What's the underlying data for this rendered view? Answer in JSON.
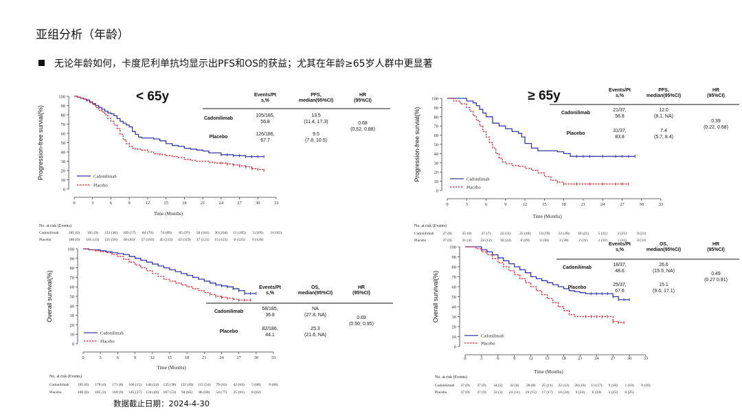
{
  "title": "亚组分析（年龄）",
  "bullet": "无论年龄如何，卡度尼利单抗均显示出PFS和OS的获益；尤其在年龄≥65岁人群中更显著",
  "footer": "数据截止日期：2024-4-30",
  "colors": {
    "cadonilimab": "#3436a8",
    "placebo": "#d8283a",
    "text": "#111111"
  },
  "chart_data": [
    {
      "id": "pfs_lt65",
      "type": "line",
      "subgroup": "< 65y",
      "ylabel": "Progression-free survial(%)",
      "xlabel": "Time (Months)",
      "xlim": [
        0,
        33
      ],
      "ylim": [
        0,
        100
      ],
      "xticks": [
        0,
        3,
        6,
        9,
        12,
        15,
        18,
        21,
        24,
        27,
        30,
        33
      ],
      "yticks": [
        0,
        10,
        20,
        30,
        40,
        50,
        60,
        70,
        80,
        90,
        100
      ],
      "legend": [
        "Cadonilimab",
        "Placebo"
      ],
      "table": {
        "headers": [
          "Events/Pt\ns,%",
          "PFS,\nmedian(95%CI)",
          "HR\n(95%CI)"
        ],
        "rows": [
          {
            "arm": "Cadonilimab",
            "events": "105/185,\n56.8",
            "median": "13.5\n(11.4, 17.3)"
          },
          {
            "arm": "Placebo",
            "events": "126/186,\n67.7",
            "median": "9.5\n(7.8, 10.5)"
          }
        ],
        "hr": "0.68\n(0.52, 0.88)"
      },
      "series": [
        {
          "name": "Cadonilimab",
          "x": [
            0,
            0.5,
            1,
            1.5,
            2,
            2.5,
            3,
            3.5,
            4,
            4.5,
            5,
            5.5,
            6,
            6.5,
            7,
            7.5,
            8,
            8.5,
            9,
            9.5,
            10,
            10.5,
            11,
            12,
            13,
            14,
            15,
            16,
            17,
            18,
            19,
            20,
            21,
            22,
            23,
            24,
            25,
            26,
            27,
            28,
            29,
            30,
            31
          ],
          "y": [
            100,
            99,
            98,
            97,
            96,
            94,
            92,
            90,
            88,
            86,
            84,
            82,
            81,
            79,
            76,
            73,
            71,
            69,
            67,
            62,
            59,
            56,
            55,
            55,
            54,
            52,
            49,
            47,
            46,
            44,
            43,
            42,
            41,
            39,
            39,
            37,
            37,
            36,
            36,
            35,
            35,
            35,
            35
          ]
        },
        {
          "name": "Placebo",
          "x": [
            0,
            0.5,
            1,
            1.5,
            2,
            2.5,
            3,
            3.5,
            4,
            4.5,
            5,
            5.5,
            6,
            6.5,
            7,
            7.5,
            8,
            8.5,
            9,
            9.5,
            10,
            11,
            12,
            13,
            14,
            15,
            16,
            17,
            18,
            19,
            20,
            21,
            22,
            23,
            24,
            25,
            26,
            27,
            28,
            29,
            30,
            31
          ],
          "y": [
            100,
            99,
            98,
            97,
            95,
            93,
            91,
            88,
            85,
            83,
            80,
            76,
            73,
            69,
            65,
            59,
            53,
            49,
            46,
            44,
            43,
            42,
            40,
            38,
            37,
            36,
            35,
            34,
            32,
            31,
            30,
            30,
            29,
            28,
            28,
            27,
            26,
            25,
            24,
            22,
            21,
            20
          ]
        }
      ],
      "risk": {
        "header": "No. at risk (Events)",
        "rows": [
          {
            "arm": "Cadonilimab",
            "values": [
              "185 (0)",
              "165 (9)",
              "133 (36)",
              "109 (57)",
              "84 (79)",
              "74 (89)",
              "65 (97)",
              "58 (101)",
              "30 (104)",
              "11 (105)",
              "3 (105)",
              "0 (105)"
            ]
          },
          {
            "arm": "Placebo",
            "values": [
              "186 (0)",
              "165 (13)",
              "121 (50)",
              "86 (83)",
              "57 (103)",
              "45 (112)",
              "41 (119)",
              "37 (121)",
              "15 (125)",
              "6 (125)",
              "0 (126)",
              ""
            ]
          }
        ]
      }
    },
    {
      "id": "pfs_ge65",
      "type": "line",
      "subgroup": "≥ 65y",
      "ylabel": "Progression-free survial(%)",
      "xlabel": "Time (Months)",
      "xlim": [
        0,
        33
      ],
      "ylim": [
        0,
        100
      ],
      "xticks": [
        0,
        3,
        6,
        9,
        12,
        15,
        18,
        21,
        24,
        27,
        30,
        33
      ],
      "yticks": [
        0,
        10,
        20,
        30,
        40,
        50,
        60,
        70,
        80,
        90,
        100
      ],
      "legend": [
        "Cadonilimab",
        "Placebo"
      ],
      "table": {
        "headers": [
          "Events/Pt\ns,%",
          "PFS,\nmedian(95%CI)",
          "HR\n(95%CI)"
        ],
        "rows": [
          {
            "arm": "Cadonilimab",
            "events": "21/37,\n56.8",
            "median": "12.0\n(8.1, NA)"
          },
          {
            "arm": "Placebo",
            "events": "31/37,\n83.8",
            "median": "7.4\n(5.7, 8.4)"
          }
        ],
        "hr": "0.39\n(0.22, 0.68)"
      },
      "series": [
        {
          "name": "Cadonilimab",
          "x": [
            0,
            2,
            3,
            4,
            4.5,
            5,
            5.5,
            6,
            7,
            8,
            9,
            10,
            11,
            11.5,
            12,
            13,
            14,
            16,
            17,
            18,
            19,
            20,
            21,
            22,
            24,
            26,
            27,
            28,
            29
          ],
          "y": [
            100,
            100,
            97,
            95,
            92,
            88,
            84,
            80,
            73,
            70,
            67,
            64,
            62,
            58,
            51,
            46,
            43,
            43,
            42,
            40,
            37,
            37,
            37,
            37,
            37,
            37,
            37,
            37,
            37
          ]
        },
        {
          "name": "Placebo",
          "x": [
            0,
            1,
            2,
            3,
            3.5,
            4,
            4.5,
            5,
            5.5,
            6,
            6.5,
            7,
            7.5,
            8,
            8.5,
            9,
            10,
            11,
            12,
            13,
            14,
            15,
            16,
            17,
            18,
            20,
            22,
            24,
            26,
            27,
            28
          ],
          "y": [
            100,
            97,
            94,
            90,
            86,
            81,
            76,
            70,
            64,
            58,
            52,
            46,
            40,
            35,
            31,
            29,
            27,
            26,
            24,
            22,
            19,
            15,
            11,
            9,
            7,
            7,
            7,
            7,
            7,
            7,
            7
          ]
        }
      ],
      "risk": {
        "header": "No. at risk (Events)",
        "rows": [
          {
            "arm": "Cadonilimab",
            "values": [
              "37 (0)",
              "35 (0)",
              "27 (7)",
              "22 (11)",
              "25 (18)",
              "14 (19)",
              "12 (20)",
              "10 (21)",
              "5 (21)",
              "3 (21)",
              "0 (21)",
              ""
            ]
          },
          {
            "arm": "Placebo",
            "values": [
              "37 (0)",
              "31 (4)",
              "22 (12)",
              "10 (24)",
              "6 (29)",
              "3 (30)",
              "3 (30)",
              "2 (31)",
              "2 (31)",
              "1 (31)",
              "0 (31)",
              ""
            ]
          }
        ]
      }
    },
    {
      "id": "os_lt65",
      "type": "line",
      "subgroup": "< 65y",
      "ylabel": "Overall  survival(%)",
      "xlabel": "Time (Months)",
      "xlim": [
        0,
        33
      ],
      "ylim": [
        0,
        100
      ],
      "xticks": [
        0,
        3,
        6,
        9,
        12,
        15,
        18,
        21,
        24,
        27,
        30,
        33
      ],
      "yticks": [
        0,
        10,
        20,
        30,
        40,
        50,
        60,
        70,
        80,
        90,
        100
      ],
      "legend": [
        "Cadonilimab",
        "Placebo"
      ],
      "table": {
        "headers": [
          "Events/Pt\ns,%",
          "OS,\nmedian(95%CI)",
          "HR\n(95%CI)"
        ],
        "rows": [
          {
            "arm": "Cadonilimab",
            "events": "68/185,\n36.8",
            "median": "NA\n(27.8, NA)"
          },
          {
            "arm": "Placebo",
            "events": "82/186,\n44.1",
            "median": "25.3\n(21.6, NA)"
          }
        ],
        "hr": "0.69\n(0.50, 0.95)"
      },
      "series": [
        {
          "name": "Cadonilimab",
          "x": [
            0,
            1,
            2,
            3,
            4,
            5,
            6,
            7,
            8,
            9,
            10,
            11,
            12,
            13,
            14,
            15,
            16,
            17,
            18,
            19,
            20,
            21,
            22,
            23,
            24,
            25,
            26,
            27,
            28,
            29,
            30
          ],
          "y": [
            100,
            99,
            99,
            98,
            97,
            96,
            95,
            94,
            92,
            90,
            88,
            86,
            84,
            82,
            80,
            78,
            76,
            74,
            72,
            70,
            68,
            66,
            64,
            62,
            61,
            60,
            58,
            56,
            53,
            53,
            53
          ]
        },
        {
          "name": "Placebo",
          "x": [
            0,
            1,
            2,
            3,
            4,
            5,
            6,
            7,
            8,
            9,
            10,
            11,
            12,
            13,
            14,
            15,
            16,
            17,
            18,
            19,
            20,
            21,
            22,
            23,
            24,
            25,
            26,
            27,
            28,
            29
          ],
          "y": [
            100,
            99,
            98,
            97,
            96,
            94,
            92,
            89,
            86,
            83,
            80,
            77,
            74,
            71,
            68,
            66,
            64,
            62,
            60,
            58,
            56,
            54,
            52,
            50,
            49,
            48,
            47,
            46,
            46,
            46
          ]
        }
      ],
      "risk": {
        "header": "No. at risk (Events)",
        "rows": [
          {
            "arm": "Cadonilimab",
            "values": [
              "185 (0)",
              "178 (4)",
              "171 (8)",
              "160 (15)",
              "146 (24)",
              "135 (38)",
              "122 (49)",
              "115 (54)",
              "79 (61)",
              "42 (64)",
              "5 (68)",
              "0 (68)"
            ]
          },
          {
            "arm": "Placebo",
            "values": [
              "186 (0)",
              "185 (3)",
              "169 (9)",
              "145 (27)",
              "124 (44)",
              "107 (53)",
              "94 (65)",
              "86 (69)",
              "54 (77)",
              "25 (81)",
              "0 (82)",
              ""
            ]
          }
        ]
      }
    },
    {
      "id": "os_ge65",
      "type": "line",
      "subgroup": "≥ 65y",
      "ylabel": "Overall  survival(%)",
      "xlabel": "Time (Months)",
      "xlim": [
        0,
        33
      ],
      "ylim": [
        0,
        100
      ],
      "xticks": [
        0,
        3,
        6,
        9,
        12,
        15,
        18,
        21,
        24,
        27,
        30,
        33
      ],
      "yticks": [
        0,
        10,
        20,
        30,
        40,
        50,
        60,
        70,
        80,
        90,
        100
      ],
      "legend": [
        "Cadonilimab",
        "Placebo"
      ],
      "table": {
        "headers": [
          "Events/Pt\ns,%",
          "OS,\nmedian(95%CI)",
          "HR\n(95%CI)"
        ],
        "rows": [
          {
            "arm": "Cadonilimab",
            "events": "18/37,\n48.6",
            "median": "26.6\n(15.5, NA)"
          },
          {
            "arm": "Placebo",
            "events": "25/37,\n67.6",
            "median": "15.1\n(9.6, 17.1)"
          }
        ],
        "hr": "0.49\n(0.27 0.91)"
      },
      "series": [
        {
          "name": "Cadonilimab",
          "x": [
            0,
            2,
            3,
            4,
            5,
            6,
            7,
            8,
            9,
            10,
            11,
            12,
            13,
            14,
            15,
            16,
            17,
            18,
            19,
            20,
            21,
            22,
            23,
            24,
            25,
            26,
            27,
            28,
            29,
            30
          ],
          "y": [
            100,
            100,
            97,
            95,
            92,
            89,
            86,
            83,
            80,
            77,
            74,
            70,
            68,
            66,
            64,
            62,
            60,
            58,
            56,
            55,
            54,
            53,
            53,
            53,
            53,
            53,
            50,
            47,
            47,
            47
          ]
        },
        {
          "name": "Placebo",
          "x": [
            0,
            2,
            3,
            4,
            5,
            6,
            7,
            8,
            9,
            10,
            11,
            12,
            13,
            14,
            15,
            16,
            17,
            18,
            19,
            20,
            21,
            22,
            23,
            24,
            25,
            26,
            27,
            28,
            29
          ],
          "y": [
            100,
            98,
            95,
            92,
            88,
            84,
            80,
            76,
            72,
            68,
            64,
            60,
            56,
            52,
            48,
            44,
            40,
            36,
            32,
            30,
            30,
            30,
            30,
            30,
            30,
            30,
            25,
            24,
            24
          ]
        }
      ],
      "risk": {
        "header": "No. at risk (Events)",
        "rows": [
          {
            "arm": "Cadonilimab",
            "values": [
              "37 (0)",
              "37 (0)",
              "34 (2)",
              "32 (4)",
              "28 (8)",
              "25 (11)",
              "22 (12)",
              "20 (16)",
              "13 (17)",
              "9 (18)",
              "1 (18)",
              "0 (18)"
            ]
          },
          {
            "arm": "Placebo",
            "values": [
              "37 (0)",
              "37 (0)",
              "33 (3)",
              "24 (11)",
              "19 (15)",
              "17 (17)",
              "10 (24)",
              "9 (24)",
              "6 (24)",
              "3 (25)",
              "0 (25)",
              ""
            ]
          }
        ]
      }
    }
  ]
}
